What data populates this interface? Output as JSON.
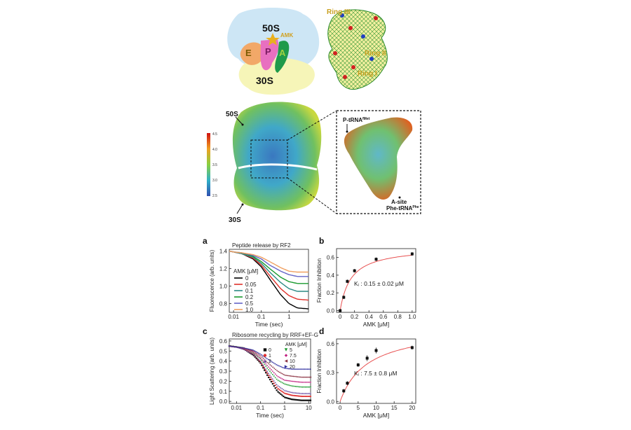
{
  "top_left": {
    "label_50s": "50S",
    "label_30s": "30S",
    "label_e": "E",
    "label_p": "P",
    "label_a": "A",
    "label_amk": "AMK"
  },
  "top_right": {
    "ring3": "Ring III",
    "ring2": "Ring II",
    "ring1": "Ring I"
  },
  "mid": {
    "label_50s": "50S",
    "label_30s": "30S",
    "colorbar_ticks": [
      "4.5",
      "4.0",
      "3.5",
      "3.0",
      "2.5"
    ],
    "p_trna": "P-tRNA",
    "p_trna_sup": "fMet",
    "a_site": "A-site",
    "phe_trna": "Phe-tRNA",
    "phe_trna_sup": "Phe"
  },
  "colors": {
    "curve_0": "#000000",
    "curve_005": "#e0302a",
    "curve_01": "#2c8a84",
    "curve_02": "#1a9a2e",
    "curve_05": "#6464c8",
    "curve_10": "#f0a060",
    "fit": "#e85050"
  },
  "chart_data": [
    {
      "panel": "a",
      "type": "line",
      "title": "Peptide release by RF2",
      "xlabel": "Time (sec)",
      "ylabel": "Fluorescence (arb. units)",
      "x_scale": "log",
      "xlim": [
        0.007,
        5
      ],
      "ylim": [
        0.7,
        1.42
      ],
      "xticks": [
        "0.01",
        "0.1",
        "1"
      ],
      "yticks": [
        "0.8",
        "1.0",
        "1.2",
        "1.4"
      ],
      "legend_title": "AMK [μM]",
      "x": [
        0.007,
        0.01,
        0.02,
        0.05,
        0.1,
        0.2,
        0.5,
        1,
        2,
        5
      ],
      "series": [
        {
          "name": "0",
          "values": [
            1.4,
            1.39,
            1.37,
            1.31,
            1.22,
            1.08,
            0.9,
            0.8,
            0.75,
            0.74
          ]
        },
        {
          "name": "0.05",
          "values": [
            1.4,
            1.39,
            1.37,
            1.32,
            1.24,
            1.12,
            0.97,
            0.89,
            0.85,
            0.84
          ]
        },
        {
          "name": "0.1",
          "values": [
            1.4,
            1.39,
            1.37,
            1.33,
            1.26,
            1.16,
            1.04,
            0.97,
            0.94,
            0.94
          ]
        },
        {
          "name": "0.2",
          "values": [
            1.4,
            1.39,
            1.38,
            1.34,
            1.28,
            1.2,
            1.1,
            1.05,
            1.03,
            1.03
          ]
        },
        {
          "name": "0.5",
          "values": [
            1.4,
            1.39,
            1.38,
            1.35,
            1.31,
            1.24,
            1.17,
            1.13,
            1.11,
            1.11
          ]
        },
        {
          "name": "1.0",
          "values": [
            1.4,
            1.39,
            1.38,
            1.36,
            1.33,
            1.28,
            1.21,
            1.17,
            1.16,
            1.16
          ]
        }
      ]
    },
    {
      "panel": "b",
      "type": "scatter",
      "xlabel": "AMK [μM]",
      "ylabel": "Fraction Inhibition",
      "xlim": [
        -0.05,
        1.05
      ],
      "ylim": [
        -0.02,
        0.7
      ],
      "xticks": [
        "0",
        "0.2",
        "0.4",
        "0.6",
        "0.8",
        "1.0"
      ],
      "yticks": [
        "0.0",
        "0.2",
        "0.4",
        "0.6"
      ],
      "annotation": "Kᵢ : 0.15 ± 0.02 μM",
      "x": [
        0,
        0.05,
        0.1,
        0.2,
        0.5,
        1.0
      ],
      "values": [
        0.0,
        0.15,
        0.33,
        0.45,
        0.58,
        0.64
      ],
      "errors": [
        0.01,
        0.02,
        0.02,
        0.02,
        0.02,
        0.02
      ],
      "fit": "hyperbolic"
    },
    {
      "panel": "c",
      "type": "scatter",
      "title": "Ribosome recycling by RRF+EF-G",
      "xlabel": "Time (sec)",
      "ylabel": "Light Scattering (arb. units)",
      "x_scale": "log",
      "xlim": [
        0.005,
        12
      ],
      "ylim": [
        -0.02,
        0.62
      ],
      "xticks": [
        "0.01",
        "0.1",
        "1",
        "10"
      ],
      "yticks": [
        "0.0",
        "0.1",
        "0.2",
        "0.3",
        "0.4",
        "0.5",
        "0.6"
      ],
      "legend_title": "AMK [μM]",
      "x": [
        0.005,
        0.01,
        0.02,
        0.05,
        0.1,
        0.2,
        0.5,
        1,
        2,
        5,
        12
      ],
      "series": [
        {
          "name": "0",
          "values": [
            0.55,
            0.54,
            0.52,
            0.46,
            0.38,
            0.25,
            0.1,
            0.04,
            0.02,
            0.01,
            0.01
          ]
        },
        {
          "name": "1",
          "values": [
            0.55,
            0.54,
            0.52,
            0.47,
            0.39,
            0.27,
            0.13,
            0.08,
            0.06,
            0.05,
            0.05
          ]
        },
        {
          "name": "2",
          "values": [
            0.55,
            0.54,
            0.52,
            0.47,
            0.4,
            0.29,
            0.16,
            0.11,
            0.09,
            0.08,
            0.08
          ]
        },
        {
          "name": "5",
          "values": [
            0.55,
            0.54,
            0.53,
            0.48,
            0.42,
            0.32,
            0.21,
            0.17,
            0.15,
            0.14,
            0.14
          ]
        },
        {
          "name": "7.5",
          "values": [
            0.55,
            0.54,
            0.53,
            0.49,
            0.43,
            0.35,
            0.25,
            0.21,
            0.2,
            0.19,
            0.19
          ]
        },
        {
          "name": "10",
          "values": [
            0.55,
            0.54,
            0.53,
            0.5,
            0.45,
            0.38,
            0.3,
            0.26,
            0.25,
            0.24,
            0.24
          ]
        },
        {
          "name": "20",
          "values": [
            0.55,
            0.54,
            0.53,
            0.51,
            0.47,
            0.42,
            0.36,
            0.33,
            0.32,
            0.32,
            0.32
          ]
        }
      ]
    },
    {
      "panel": "d",
      "type": "scatter",
      "xlabel": "AMK [μM]",
      "ylabel": "Fraction Inhibition",
      "xlim": [
        -1,
        21
      ],
      "ylim": [
        -0.02,
        0.65
      ],
      "xticks": [
        "0",
        "5",
        "10",
        "15",
        "20"
      ],
      "yticks": [
        "0.0",
        "0.3",
        "0.6"
      ],
      "annotation": "Kᵢ : 7.5 ± 0.8 μM",
      "x": [
        1,
        2,
        5,
        7.5,
        10,
        20
      ],
      "values": [
        0.11,
        0.19,
        0.38,
        0.45,
        0.53,
        0.56
      ],
      "errors": [
        0.02,
        0.02,
        0.02,
        0.03,
        0.03,
        0.02
      ],
      "fit": "hyperbolic"
    }
  ]
}
